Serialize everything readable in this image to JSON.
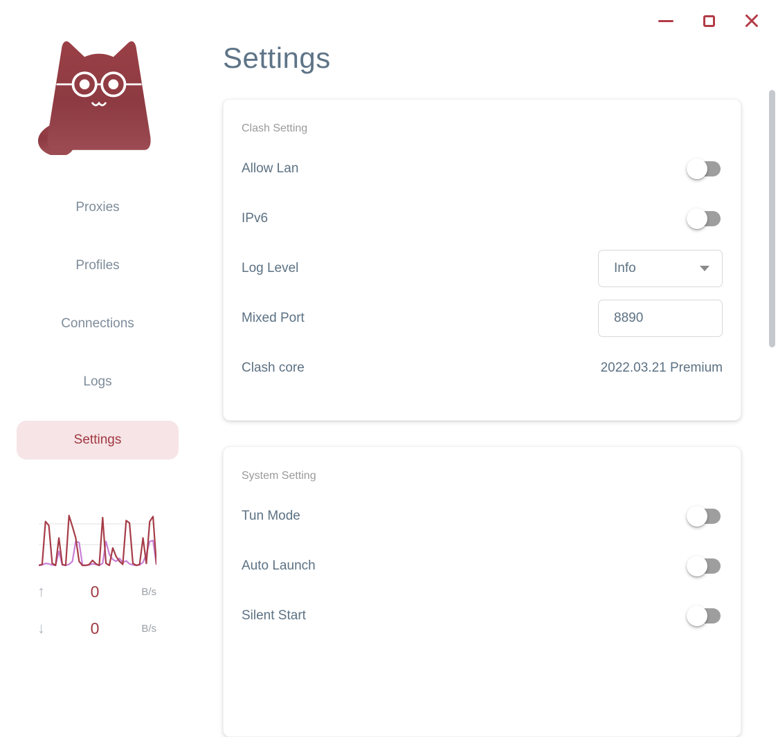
{
  "window": {
    "accent_color": "#b23b46",
    "controls": {
      "minimize": "minimize",
      "maximize": "maximize",
      "close": "close"
    }
  },
  "sidebar": {
    "logo": "clash-cat-mascot",
    "items": [
      {
        "label": "Proxies",
        "active": false
      },
      {
        "label": "Profiles",
        "active": false
      },
      {
        "label": "Connections",
        "active": false
      },
      {
        "label": "Logs",
        "active": false
      },
      {
        "label": "Settings",
        "active": true
      }
    ],
    "traffic": {
      "upload": {
        "arrow": "up",
        "value": "0",
        "unit": "B/s"
      },
      "download": {
        "arrow": "down",
        "value": "0",
        "unit": "B/s"
      },
      "chart": {
        "type": "line",
        "ylim": [
          0,
          100
        ],
        "grid": true,
        "series": [
          {
            "name": "download",
            "color": "#c87fd6",
            "values": [
              0,
              1,
              4,
              3,
              1,
              0,
              28,
              1,
              0,
              2,
              8,
              48,
              46,
              1,
              0,
              1,
              3,
              2,
              0,
              4,
              48,
              22,
              12,
              8,
              14,
              6,
              9,
              3,
              1,
              0,
              1,
              6,
              22,
              48,
              50,
              1
            ]
          },
          {
            "name": "upload",
            "color": "#a63c47",
            "values": [
              0,
              2,
              88,
              80,
              4,
              0,
              55,
              2,
              0,
              100,
              78,
              55,
              8,
              0,
              0,
              2,
              10,
              3,
              0,
              96,
              4,
              0,
              35,
              18,
              8,
              2,
              90,
              85,
              4,
              0,
              2,
              55,
              4,
              88,
              98,
              2
            ]
          }
        ]
      }
    }
  },
  "main": {
    "title": "Settings",
    "cards": [
      {
        "header": "Clash Setting",
        "rows": [
          {
            "label": "Allow Lan",
            "control": "toggle",
            "value": false
          },
          {
            "label": "IPv6",
            "control": "toggle",
            "value": false
          },
          {
            "label": "Log Level",
            "control": "select",
            "value": "Info"
          },
          {
            "label": "Mixed Port",
            "control": "input",
            "value": "8890"
          },
          {
            "label": "Clash core",
            "control": "text",
            "value": "2022.03.21 Premium"
          }
        ]
      },
      {
        "header": "System Setting",
        "rows": [
          {
            "label": "Tun Mode",
            "control": "toggle",
            "value": false
          },
          {
            "label": "Auto Launch",
            "control": "toggle",
            "value": false
          },
          {
            "label": "Silent Start",
            "control": "toggle",
            "value": false
          }
        ]
      }
    ]
  }
}
